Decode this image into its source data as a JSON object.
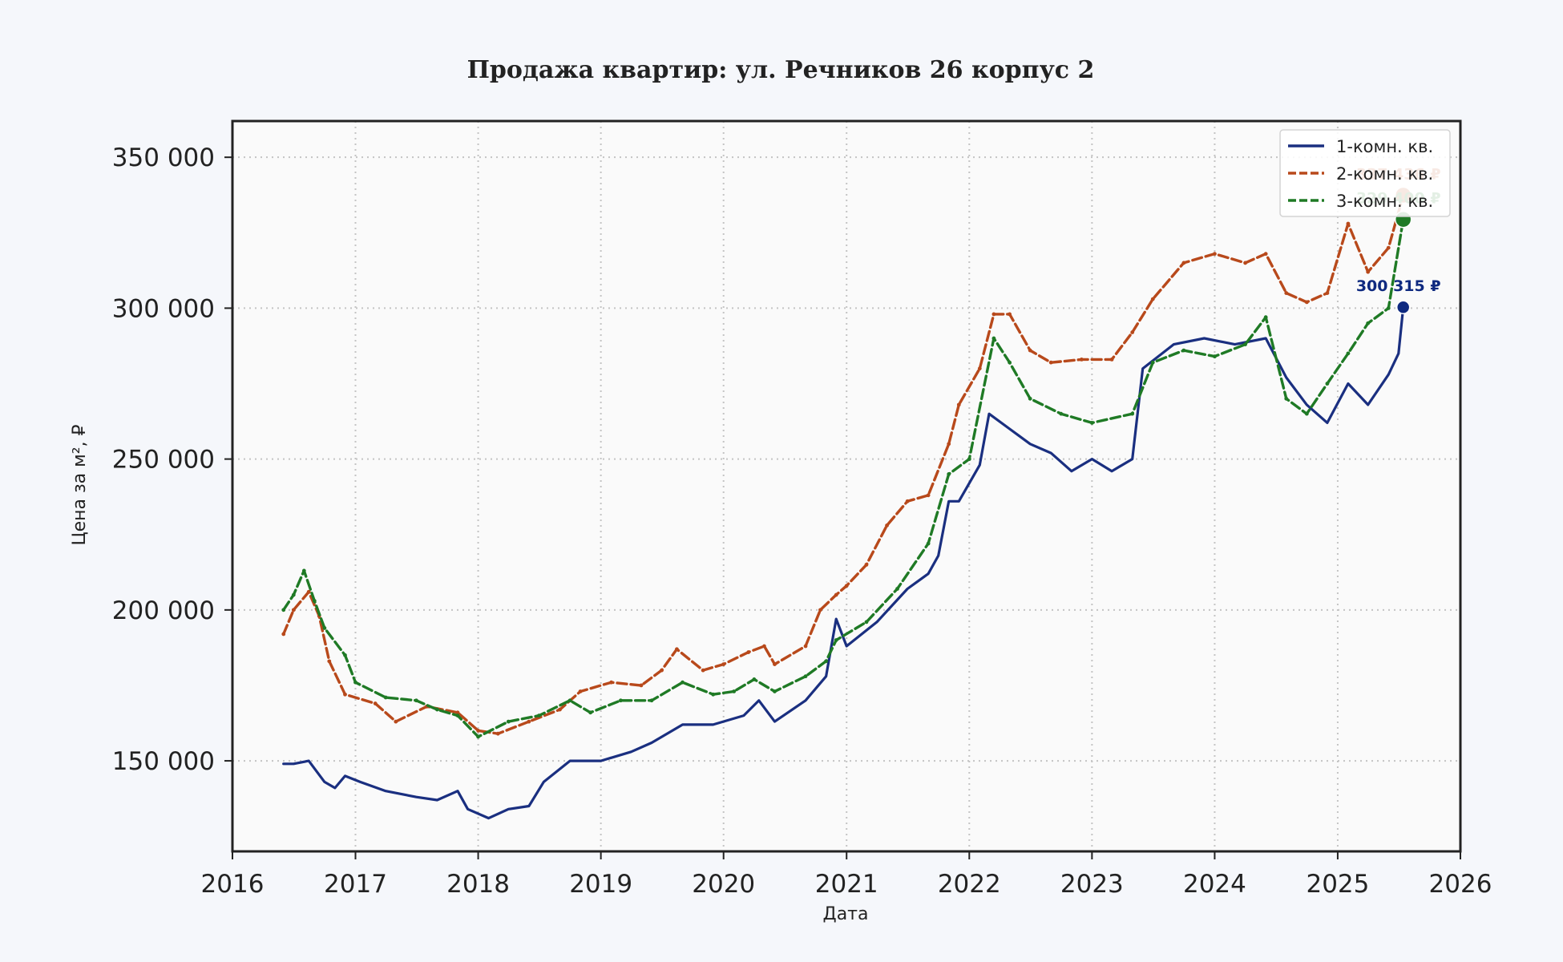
{
  "chart_data": {
    "type": "line",
    "title": "Продажа квартир: ул. Речников 26 корпус 2",
    "xlabel": "Дата",
    "ylabel": "Цена за м², ₽",
    "xlim": [
      "2016-01-01",
      "2026-01-01"
    ],
    "ylim": [
      120000,
      362000
    ],
    "x_ticks": [
      "2016",
      "2017",
      "2018",
      "2019",
      "2020",
      "2021",
      "2022",
      "2023",
      "2024",
      "2025",
      "2026"
    ],
    "y_ticks": [
      150000,
      200000,
      250000,
      300000,
      350000
    ],
    "y_tick_labels": [
      "150 000",
      "200 000",
      "250 000",
      "300 000",
      "350 000"
    ],
    "grid": true,
    "legend_position": "top-right",
    "series": [
      {
        "name": "1-комн. кв.",
        "color": "#1a2f80",
        "style": "solid",
        "points": [
          [
            "2016-06-01",
            149000
          ],
          [
            "2016-07-01",
            149000
          ],
          [
            "2016-08-15",
            150000
          ],
          [
            "2016-10-01",
            143000
          ],
          [
            "2016-11-01",
            141000
          ],
          [
            "2016-12-01",
            145000
          ],
          [
            "2017-01-15",
            143000
          ],
          [
            "2017-04-01",
            140000
          ],
          [
            "2017-07-01",
            138000
          ],
          [
            "2017-09-01",
            137000
          ],
          [
            "2017-11-01",
            140000
          ],
          [
            "2017-12-01",
            134000
          ],
          [
            "2018-02-01",
            131000
          ],
          [
            "2018-04-01",
            134000
          ],
          [
            "2018-06-01",
            135000
          ],
          [
            "2018-07-15",
            143000
          ],
          [
            "2018-10-01",
            150000
          ],
          [
            "2019-01-01",
            150000
          ],
          [
            "2019-04-01",
            153000
          ],
          [
            "2019-06-01",
            156000
          ],
          [
            "2019-09-01",
            162000
          ],
          [
            "2019-12-01",
            162000
          ],
          [
            "2020-03-01",
            165000
          ],
          [
            "2020-04-15",
            170000
          ],
          [
            "2020-06-01",
            163000
          ],
          [
            "2020-09-01",
            170000
          ],
          [
            "2020-11-01",
            178000
          ],
          [
            "2020-12-01",
            197000
          ],
          [
            "2021-01-01",
            188000
          ],
          [
            "2021-04-01",
            196000
          ],
          [
            "2021-07-01",
            207000
          ],
          [
            "2021-09-01",
            212000
          ],
          [
            "2021-10-01",
            218000
          ],
          [
            "2021-11-01",
            236000
          ],
          [
            "2021-12-01",
            236000
          ],
          [
            "2022-02-01",
            248000
          ],
          [
            "2022-03-01",
            265000
          ],
          [
            "2022-05-01",
            260000
          ],
          [
            "2022-07-01",
            255000
          ],
          [
            "2022-09-01",
            252000
          ],
          [
            "2022-11-01",
            246000
          ],
          [
            "2023-01-01",
            250000
          ],
          [
            "2023-03-01",
            246000
          ],
          [
            "2023-05-01",
            250000
          ],
          [
            "2023-06-01",
            280000
          ],
          [
            "2023-09-01",
            288000
          ],
          [
            "2023-12-01",
            290000
          ],
          [
            "2024-03-01",
            288000
          ],
          [
            "2024-06-01",
            290000
          ],
          [
            "2024-08-01",
            277000
          ],
          [
            "2024-10-01",
            268000
          ],
          [
            "2024-12-01",
            262000
          ],
          [
            "2025-02-01",
            275000
          ],
          [
            "2025-04-01",
            268000
          ],
          [
            "2025-06-01",
            278000
          ],
          [
            "2025-07-01",
            285000
          ],
          [
            "2025-07-15",
            300315
          ]
        ]
      },
      {
        "name": "2-комн. кв.",
        "color": "#b8491b",
        "style": "dashed",
        "points": [
          [
            "2016-06-01",
            192000
          ],
          [
            "2016-07-01",
            200000
          ],
          [
            "2016-08-15",
            206000
          ],
          [
            "2016-09-15",
            198000
          ],
          [
            "2016-10-15",
            183000
          ],
          [
            "2016-12-01",
            172000
          ],
          [
            "2017-03-01",
            169000
          ],
          [
            "2017-05-01",
            163000
          ],
          [
            "2017-08-01",
            168000
          ],
          [
            "2017-11-01",
            166000
          ],
          [
            "2018-01-01",
            160000
          ],
          [
            "2018-03-01",
            159000
          ],
          [
            "2018-06-01",
            163000
          ],
          [
            "2018-09-01",
            167000
          ],
          [
            "2018-11-01",
            173000
          ],
          [
            "2019-02-01",
            176000
          ],
          [
            "2019-05-01",
            175000
          ],
          [
            "2019-07-01",
            180000
          ],
          [
            "2019-08-15",
            187000
          ],
          [
            "2019-11-01",
            180000
          ],
          [
            "2020-01-01",
            182000
          ],
          [
            "2020-03-15",
            186000
          ],
          [
            "2020-05-01",
            188000
          ],
          [
            "2020-06-01",
            182000
          ],
          [
            "2020-09-01",
            188000
          ],
          [
            "2020-10-15",
            200000
          ],
          [
            "2020-12-01",
            205000
          ],
          [
            "2021-01-01",
            208000
          ],
          [
            "2021-03-01",
            215000
          ],
          [
            "2021-05-01",
            228000
          ],
          [
            "2021-07-01",
            236000
          ],
          [
            "2021-09-01",
            238000
          ],
          [
            "2021-11-01",
            255000
          ],
          [
            "2021-12-01",
            268000
          ],
          [
            "2022-02-01",
            280000
          ],
          [
            "2022-03-15",
            298000
          ],
          [
            "2022-05-01",
            298000
          ],
          [
            "2022-07-01",
            286000
          ],
          [
            "2022-09-01",
            282000
          ],
          [
            "2022-12-01",
            283000
          ],
          [
            "2023-03-01",
            283000
          ],
          [
            "2023-05-01",
            292000
          ],
          [
            "2023-07-01",
            303000
          ],
          [
            "2023-10-01",
            315000
          ],
          [
            "2024-01-01",
            318000
          ],
          [
            "2024-04-01",
            315000
          ],
          [
            "2024-06-01",
            318000
          ],
          [
            "2024-08-01",
            305000
          ],
          [
            "2024-10-01",
            302000
          ],
          [
            "2024-12-01",
            305000
          ],
          [
            "2025-02-01",
            328000
          ],
          [
            "2025-04-01",
            312000
          ],
          [
            "2025-06-01",
            320000
          ],
          [
            "2025-07-15",
            337436
          ]
        ]
      },
      {
        "name": "3-комн. кв.",
        "color": "#1f7a25",
        "style": "dashed",
        "points": [
          [
            "2016-06-01",
            200000
          ],
          [
            "2016-07-01",
            205000
          ],
          [
            "2016-08-01",
            213000
          ],
          [
            "2016-09-01",
            203000
          ],
          [
            "2016-10-01",
            194000
          ],
          [
            "2016-12-01",
            185000
          ],
          [
            "2017-01-01",
            176000
          ],
          [
            "2017-04-01",
            171000
          ],
          [
            "2017-07-01",
            170000
          ],
          [
            "2017-09-01",
            167000
          ],
          [
            "2017-11-01",
            165000
          ],
          [
            "2018-01-01",
            158000
          ],
          [
            "2018-04-01",
            163000
          ],
          [
            "2018-07-01",
            165000
          ],
          [
            "2018-10-01",
            170000
          ],
          [
            "2018-12-01",
            166000
          ],
          [
            "2019-03-01",
            170000
          ],
          [
            "2019-06-01",
            170000
          ],
          [
            "2019-09-01",
            176000
          ],
          [
            "2019-12-01",
            172000
          ],
          [
            "2020-02-01",
            173000
          ],
          [
            "2020-04-01",
            177000
          ],
          [
            "2020-06-01",
            173000
          ],
          [
            "2020-09-01",
            178000
          ],
          [
            "2020-11-01",
            183000
          ],
          [
            "2020-12-01",
            190000
          ],
          [
            "2021-03-01",
            196000
          ],
          [
            "2021-06-01",
            207000
          ],
          [
            "2021-09-01",
            222000
          ],
          [
            "2021-11-01",
            245000
          ],
          [
            "2022-01-01",
            250000
          ],
          [
            "2022-03-15",
            290000
          ],
          [
            "2022-05-01",
            282000
          ],
          [
            "2022-07-01",
            270000
          ],
          [
            "2022-10-01",
            265000
          ],
          [
            "2023-01-01",
            262000
          ],
          [
            "2023-05-01",
            265000
          ],
          [
            "2023-07-01",
            282000
          ],
          [
            "2023-10-01",
            286000
          ],
          [
            "2024-01-01",
            284000
          ],
          [
            "2024-04-01",
            288000
          ],
          [
            "2024-06-01",
            297000
          ],
          [
            "2024-08-01",
            270000
          ],
          [
            "2024-10-01",
            265000
          ],
          [
            "2024-12-01",
            275000
          ],
          [
            "2025-02-01",
            285000
          ],
          [
            "2025-04-01",
            295000
          ],
          [
            "2025-06-01",
            300000
          ],
          [
            "2025-07-15",
            329400
          ]
        ]
      }
    ],
    "annotations": [
      {
        "series": "1-комн. кв.",
        "x": "2025-07-15",
        "y": 300315,
        "text": "300 315 ₽",
        "color": "#0f2a80"
      },
      {
        "series": "2-комн. кв.",
        "x": "2025-07-15",
        "y": 337436,
        "text": "337 436 ₽",
        "color": "#b8491b"
      },
      {
        "series": "3-комн. кв.",
        "x": "2025-07-15",
        "y": 329400,
        "text": "329 400 ₽",
        "color": "#1f7a25"
      }
    ]
  }
}
